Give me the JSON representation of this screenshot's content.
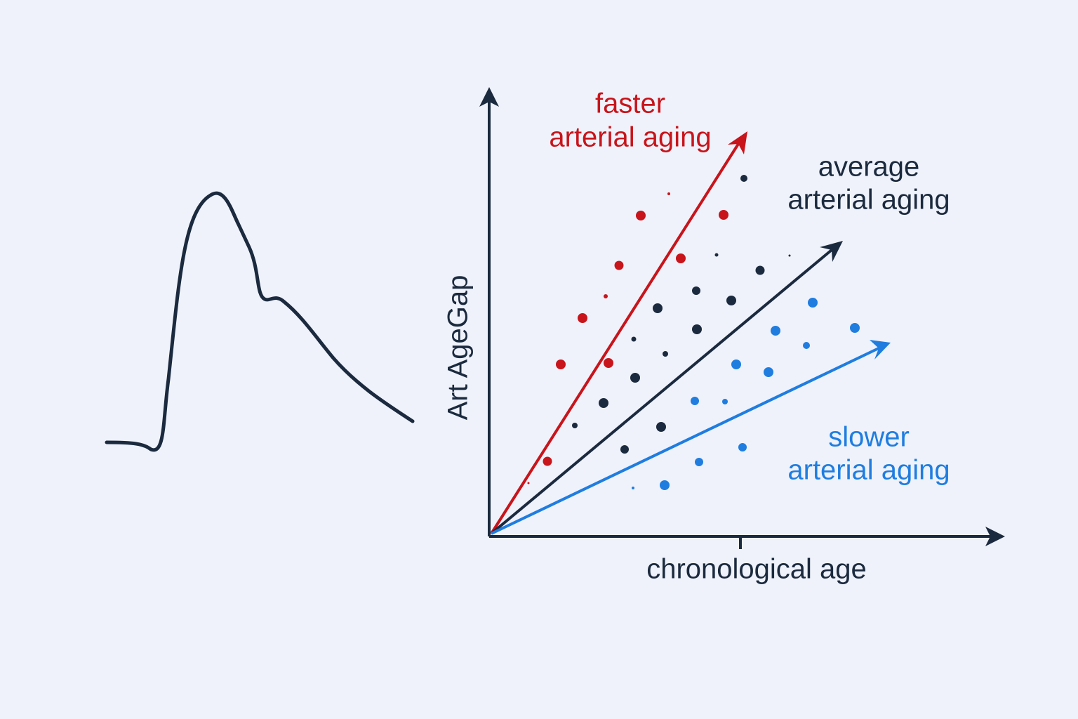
{
  "labels": {
    "faster": [
      "faster",
      "arterial aging"
    ],
    "average": [
      "average",
      "arterial aging"
    ],
    "slower": [
      "slower",
      "arterial aging"
    ]
  },
  "y_axis_label": "Art AgeGap",
  "x_axis_label": "chronological age"
}
